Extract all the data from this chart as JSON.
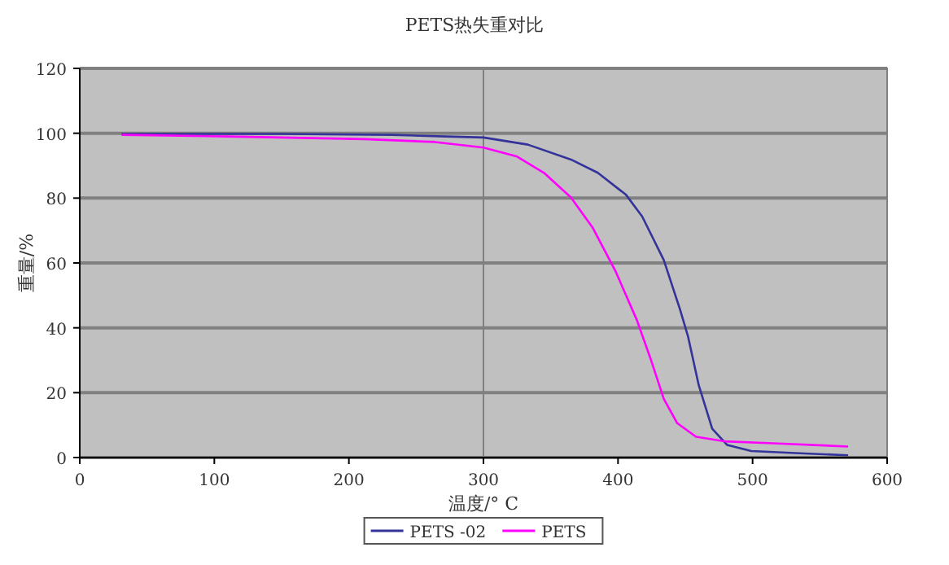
{
  "chart_data": {
    "type": "line",
    "title": "PETS热失重对比",
    "xlabel": "温度/° C",
    "ylabel": "重量/%",
    "xlim": [
      0,
      600
    ],
    "ylim": [
      0,
      120
    ],
    "xticks": [
      0,
      100,
      200,
      300,
      400,
      500,
      600
    ],
    "yticks": [
      0,
      20,
      40,
      60,
      80,
      100,
      120
    ],
    "grid": "y",
    "legend": "bottom",
    "ref_lines": [
      {
        "axis": "x",
        "value": 300,
        "color": "#808080"
      }
    ],
    "series": [
      {
        "name": "PETS -02",
        "color": "#333399",
        "x": [
          31,
          151,
          232,
          272,
          300,
          333,
          365,
          385,
          406,
          418,
          434,
          446,
          452,
          460,
          470,
          481,
          499,
          535,
          571
        ],
        "values": [
          99.8,
          99.8,
          99.5,
          99.0,
          98.7,
          96.5,
          91.9,
          87.8,
          81.0,
          74.3,
          60.9,
          45.8,
          37.4,
          22.3,
          8.9,
          3.9,
          2.0,
          1.3,
          0.7
        ]
      },
      {
        "name": "PETS",
        "color": "#ff00ff",
        "x": [
          31,
          110,
          211,
          264,
          300,
          325,
          345,
          365,
          381,
          398,
          414,
          424,
          434,
          444,
          458,
          479,
          515,
          571
        ],
        "values": [
          99.5,
          99.0,
          98.2,
          97.3,
          95.6,
          92.8,
          87.8,
          80.2,
          71.0,
          57.6,
          42.4,
          30.7,
          18.1,
          10.6,
          6.4,
          5.0,
          4.4,
          3.4
        ]
      }
    ]
  }
}
